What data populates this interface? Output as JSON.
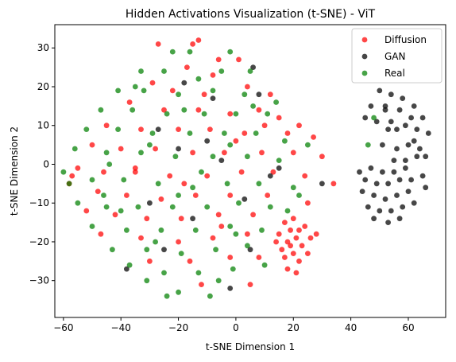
{
  "chart_data": {
    "type": "scatter",
    "title": "Hidden Activations Visualization (t-SNE) - ViT",
    "xlabel": "t-SNE Dimension 1",
    "ylabel": "t-SNE Dimension 2",
    "xlim": [
      -63,
      73
    ],
    "ylim": [
      -39.5,
      36
    ],
    "xticks": [
      -60,
      -40,
      -20,
      0,
      20,
      40,
      60
    ],
    "yticks": [
      -30,
      -20,
      -10,
      0,
      10,
      20,
      30
    ],
    "legend_position": "top-right",
    "grid": false,
    "series": [
      {
        "name": "Diffusion",
        "color": "#ff0000",
        "points": [
          [
            -27,
            31
          ],
          [
            -15,
            31
          ],
          [
            -13,
            32
          ],
          [
            -6,
            27
          ],
          [
            1,
            27
          ],
          [
            -17,
            25
          ],
          [
            -8,
            23
          ],
          [
            -29,
            21
          ],
          [
            -22,
            19
          ],
          [
            -11,
            18
          ],
          [
            4,
            20
          ],
          [
            12,
            18
          ],
          [
            -37,
            16
          ],
          [
            -25,
            14
          ],
          [
            -13,
            14
          ],
          [
            -2,
            13
          ],
          [
            8,
            14
          ],
          [
            15,
            12
          ],
          [
            22,
            10
          ],
          [
            -45,
            10
          ],
          [
            -33,
            9
          ],
          [
            -20,
            9
          ],
          [
            -9,
            9
          ],
          [
            3,
            8
          ],
          [
            18,
            8
          ],
          [
            27,
            7
          ],
          [
            -50,
            5
          ],
          [
            -40,
            4
          ],
          [
            -28,
            4
          ],
          [
            -15,
            3
          ],
          [
            -4,
            3
          ],
          [
            9,
            3
          ],
          [
            20,
            3
          ],
          [
            30,
            2
          ],
          [
            -55,
            -1
          ],
          [
            -46,
            -2
          ],
          [
            -35,
            -2
          ],
          [
            -23,
            -3
          ],
          [
            -10,
            -3
          ],
          [
            2,
            -2
          ],
          [
            13,
            -2
          ],
          [
            24,
            -3
          ],
          [
            34,
            -5
          ],
          [
            -58,
            -5
          ],
          [
            -48,
            -7
          ],
          [
            -38,
            -8
          ],
          [
            -26,
            -9
          ],
          [
            -14,
            -8
          ],
          [
            -2,
            -8
          ],
          [
            11,
            -8
          ],
          [
            25,
            -10
          ],
          [
            -52,
            -12
          ],
          [
            -42,
            -13
          ],
          [
            -31,
            -14
          ],
          [
            -19,
            -14
          ],
          [
            -6,
            -13
          ],
          [
            6,
            -13
          ],
          [
            -47,
            -18
          ],
          [
            -33,
            -19
          ],
          [
            -20,
            -20
          ],
          [
            -8,
            -19
          ],
          [
            4,
            -18
          ],
          [
            -30,
            -25
          ],
          [
            -16,
            -25
          ],
          [
            -2,
            -24
          ],
          [
            8,
            -24
          ],
          [
            -12,
            -31
          ],
          [
            5,
            -31
          ],
          [
            17,
            -15
          ],
          [
            19,
            -17
          ],
          [
            21,
            -19
          ],
          [
            18,
            -20
          ],
          [
            23,
            -21
          ],
          [
            16,
            -22
          ],
          [
            20,
            -23
          ],
          [
            22,
            -25
          ],
          [
            18,
            -27
          ],
          [
            24,
            -16
          ],
          [
            15,
            -18
          ],
          [
            26,
            -19
          ],
          [
            20,
            -14
          ],
          [
            17,
            -24
          ],
          [
            21,
            -28
          ],
          [
            14,
            -20
          ],
          [
            25,
            -23
          ],
          [
            19,
            -21
          ],
          [
            22,
            -17
          ],
          [
            28,
            -18
          ],
          [
            -35,
            -1
          ],
          [
            -57,
            -3
          ],
          [
            0,
            6
          ],
          [
            10,
            10
          ],
          [
            -18,
            -5
          ],
          [
            -5,
            -16
          ]
        ]
      },
      {
        "name": "GAN",
        "color": "#000000",
        "points": [
          [
            50,
            19
          ],
          [
            54,
            18
          ],
          [
            58,
            17
          ],
          [
            62,
            15
          ],
          [
            47,
            15
          ],
          [
            52,
            14
          ],
          [
            57,
            14
          ],
          [
            61,
            12
          ],
          [
            65,
            12
          ],
          [
            45,
            12
          ],
          [
            49,
            11
          ],
          [
            54,
            11
          ],
          [
            59,
            10
          ],
          [
            63,
            9
          ],
          [
            67,
            8
          ],
          [
            53,
            9
          ],
          [
            51,
            5
          ],
          [
            56,
            4
          ],
          [
            60,
            5
          ],
          [
            64,
            4
          ],
          [
            55,
            1
          ],
          [
            59,
            1
          ],
          [
            63,
            2
          ],
          [
            47,
            -1
          ],
          [
            51,
            -2
          ],
          [
            55,
            -2
          ],
          [
            59,
            -1
          ],
          [
            45,
            -4
          ],
          [
            49,
            -5
          ],
          [
            53,
            -5
          ],
          [
            57,
            -4
          ],
          [
            61,
            -4
          ],
          [
            65,
            -3
          ],
          [
            44,
            -7
          ],
          [
            48,
            -8
          ],
          [
            52,
            -9
          ],
          [
            56,
            -8
          ],
          [
            60,
            -7
          ],
          [
            46,
            -11
          ],
          [
            50,
            -12
          ],
          [
            54,
            -12
          ],
          [
            58,
            -11
          ],
          [
            62,
            -10
          ],
          [
            48,
            -14
          ],
          [
            53,
            -15
          ],
          [
            57,
            -14
          ],
          [
            66,
            -6
          ],
          [
            43,
            -2
          ],
          [
            62,
            6
          ],
          [
            66,
            2
          ],
          [
            52,
            15
          ],
          [
            56,
            9
          ],
          [
            -10,
            6
          ],
          [
            -20,
            4
          ],
          [
            -5,
            1
          ],
          [
            -30,
            -10
          ],
          [
            -15,
            -14
          ],
          [
            5,
            -22
          ],
          [
            -25,
            -22
          ],
          [
            -38,
            -27
          ],
          [
            8,
            18
          ],
          [
            -18,
            21
          ],
          [
            -8,
            17
          ],
          [
            12,
            -3
          ],
          [
            3,
            -9
          ],
          [
            -27,
            9
          ],
          [
            30,
            -5
          ],
          [
            -2,
            -32
          ],
          [
            6,
            25
          ],
          [
            15,
            -1
          ]
        ]
      },
      {
        "name": "Real",
        "color": "#008000",
        "points": [
          [
            -22,
            29
          ],
          [
            -16,
            29
          ],
          [
            -2,
            29
          ],
          [
            -33,
            24
          ],
          [
            -25,
            24
          ],
          [
            -13,
            22
          ],
          [
            -5,
            24
          ],
          [
            5,
            24
          ],
          [
            -41,
            19
          ],
          [
            -32,
            19
          ],
          [
            -20,
            18
          ],
          [
            -8,
            19
          ],
          [
            3,
            18
          ],
          [
            -47,
            14
          ],
          [
            -36,
            14
          ],
          [
            -24,
            13
          ],
          [
            -11,
            13
          ],
          [
            0,
            13
          ],
          [
            11,
            13
          ],
          [
            -52,
            9
          ],
          [
            -41,
            9
          ],
          [
            -29,
            8
          ],
          [
            -16,
            8
          ],
          [
            -4,
            8
          ],
          [
            7,
            8
          ],
          [
            17,
            6
          ],
          [
            25,
            5
          ],
          [
            -56,
            4
          ],
          [
            -45,
            3
          ],
          [
            -33,
            3
          ],
          [
            -21,
            2
          ],
          [
            -8,
            2
          ],
          [
            4,
            2
          ],
          [
            15,
            1
          ],
          [
            -60,
            -2
          ],
          [
            -50,
            -4
          ],
          [
            -39,
            -4
          ],
          [
            -27,
            -5
          ],
          [
            -15,
            -6
          ],
          [
            -3,
            -5
          ],
          [
            8,
            -5
          ],
          [
            20,
            -6
          ],
          [
            -55,
            -10
          ],
          [
            -45,
            -11
          ],
          [
            -34,
            -11
          ],
          [
            -22,
            -11
          ],
          [
            -10,
            -11
          ],
          [
            1,
            -10
          ],
          [
            12,
            -11
          ],
          [
            -50,
            -16
          ],
          [
            -38,
            -17
          ],
          [
            -26,
            -17
          ],
          [
            -14,
            -17
          ],
          [
            -2,
            -16
          ],
          [
            9,
            -17
          ],
          [
            -43,
            -22
          ],
          [
            -31,
            -22
          ],
          [
            -19,
            -23
          ],
          [
            -7,
            -22
          ],
          [
            4,
            -21
          ],
          [
            -37,
            -26
          ],
          [
            -25,
            -28
          ],
          [
            -13,
            -28
          ],
          [
            -1,
            -27
          ],
          [
            -31,
            -30
          ],
          [
            -20,
            -33
          ],
          [
            -9,
            -34
          ],
          [
            -24,
            -34
          ],
          [
            -40,
            -12
          ],
          [
            -30,
            5
          ],
          [
            -12,
            -2
          ],
          [
            0,
            -18
          ],
          [
            18,
            -12
          ],
          [
            22,
            -8
          ],
          [
            -18,
            14
          ],
          [
            -46,
            -8
          ],
          [
            -35,
            20
          ],
          [
            -6,
            -30
          ],
          [
            48,
            12
          ],
          [
            46,
            5
          ],
          [
            10,
            -26
          ],
          [
            -58,
            -5
          ],
          [
            -28,
            -20
          ],
          [
            6,
            15
          ],
          [
            -2,
            5
          ],
          [
            14,
            16
          ],
          [
            -44,
            0
          ],
          [
            -20,
            -8
          ]
        ]
      }
    ]
  }
}
